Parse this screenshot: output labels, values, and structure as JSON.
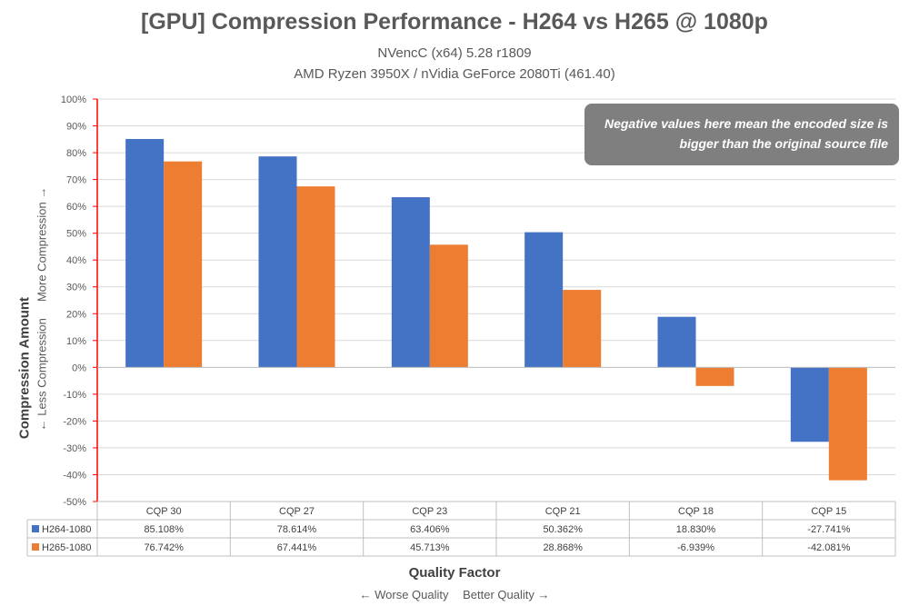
{
  "chart_data": {
    "type": "bar",
    "title": "[GPU] Compression Performance - H264 vs H265 @ 1080p",
    "subtitle_lines": [
      "NVencC (x64) 5.28 r1809",
      "AMD Ryzen 3950X / nVidia GeForce 2080Ti (461.40)"
    ],
    "categories": [
      "CQP 30",
      "CQP 27",
      "CQP 23",
      "CQP 21",
      "CQP 18",
      "CQP 15"
    ],
    "series": [
      {
        "name": "H264-1080",
        "color": "#4472c4",
        "values": [
          85.108,
          78.614,
          63.406,
          50.362,
          18.83,
          -27.741
        ],
        "labels": [
          "85.108%",
          "78.614%",
          "63.406%",
          "50.362%",
          "18.830%",
          "-27.741%"
        ]
      },
      {
        "name": "H265-1080",
        "color": "#ed7d31",
        "values": [
          76.742,
          67.441,
          45.713,
          28.868,
          -6.939,
          -42.081
        ],
        "labels": [
          "76.742%",
          "67.441%",
          "45.713%",
          "28.868%",
          "-6.939%",
          "-42.081%"
        ]
      }
    ],
    "ylim": [
      -50,
      100
    ],
    "yticks": [
      100,
      90,
      80,
      70,
      60,
      50,
      40,
      30,
      20,
      10,
      0,
      -10,
      -20,
      -30,
      -40,
      -50
    ],
    "ytick_labels": [
      "100%",
      "90%",
      "80%",
      "70%",
      "60%",
      "50%",
      "40%",
      "30%",
      "20%",
      "10%",
      "0%",
      "-10%",
      "-20%",
      "-30%",
      "-40%",
      "-50%"
    ],
    "ylabel": "Compression Amount",
    "ylabel_sub_left": "← Less Compression",
    "ylabel_sub_right": "More Compression →",
    "xlabel": "Quality Factor",
    "xlabel_sub_left": "← Worse Quality",
    "xlabel_sub_right": "Better Quality →",
    "annotation_lines": [
      "Negative values here mean the encoded size is",
      "bigger than the original source file"
    ],
    "grid": true,
    "legend_placement": "data-table",
    "axis_color": "#ff0000",
    "grid_color": "#d9d9d9"
  }
}
